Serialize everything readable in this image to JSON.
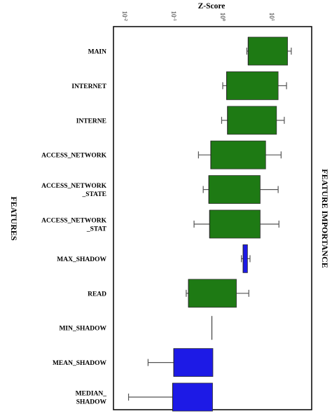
{
  "chart_data": {
    "type": "boxplot",
    "orientation": "horizontal",
    "title": "Z-Score",
    "xlabel": "FEATURE IMPORTANCE",
    "ylabel": "FEATURES",
    "xscale": "log",
    "xlim": [
      0.01,
      30
    ],
    "x_ticks": [
      {
        "base": "10",
        "exp": "-2",
        "value": 0.01
      },
      {
        "base": "10",
        "exp": "-1",
        "value": 0.1
      },
      {
        "base": "10",
        "exp": "0",
        "value": 1
      },
      {
        "base": "10",
        "exp": "1",
        "value": 10
      }
    ],
    "colors": {
      "green": "#1e7a14",
      "blue": "#1d1ae6"
    },
    "features": [
      {
        "label": "MAIN",
        "color": "green",
        "whisker_low": 3.1,
        "q1": 3.3,
        "median": 3.3,
        "q3": 21,
        "whisker_high": 25
      },
      {
        "label": "INTERNET",
        "color": "green",
        "whisker_low": 1.0,
        "q1": 1.2,
        "median": 1.2,
        "q3": 13.5,
        "whisker_high": 20
      },
      {
        "label": "INTERNE",
        "color": "green",
        "whisker_low": 0.95,
        "q1": 1.25,
        "median": 1.25,
        "q3": 12.5,
        "whisker_high": 18
      },
      {
        "label": "ACCESS_NETWORK",
        "color": "green",
        "whisker_low": 0.32,
        "q1": 0.57,
        "median": 0.57,
        "q3": 7.5,
        "whisker_high": 15.5
      },
      {
        "label": "ACCESS_NETWORK\n_STATE",
        "color": "green",
        "whisker_low": 0.4,
        "q1": 0.52,
        "median": 0.52,
        "q3": 5.8,
        "whisker_high": 13.5
      },
      {
        "label": "ACCESS_NETWORK\n_STAT",
        "color": "green",
        "whisker_low": 0.26,
        "q1": 0.54,
        "median": 0.54,
        "q3": 5.8,
        "whisker_high": 14
      },
      {
        "label": "MAX_SHADOW",
        "color": "blue",
        "whisker_low": 2.4,
        "q1": 2.6,
        "median": 2.6,
        "q3": 3.2,
        "whisker_high": 3.6
      },
      {
        "label": "READ",
        "color": "green",
        "whisker_low": 0.18,
        "q1": 0.2,
        "median": 0.2,
        "q3": 1.9,
        "whisker_high": 3.4
      },
      {
        "label": "MIN_SHADOW",
        "color": "green",
        "whisker_low": 0.6,
        "q1": 0.6,
        "median": 0.6,
        "q3": 0.6,
        "whisker_high": 0.6
      },
      {
        "label": "MEAN_SHADOW",
        "color": "blue",
        "whisker_low": 0.03,
        "q1": 0.1,
        "median": 0.1,
        "q3": 0.63,
        "whisker_high": 0.63
      },
      {
        "label": "MEDIAN_\nSHADOW",
        "color": "blue",
        "whisker_low": 0.012,
        "q1": 0.095,
        "median": 0.095,
        "q3": 0.62,
        "whisker_high": 0.62
      }
    ]
  }
}
